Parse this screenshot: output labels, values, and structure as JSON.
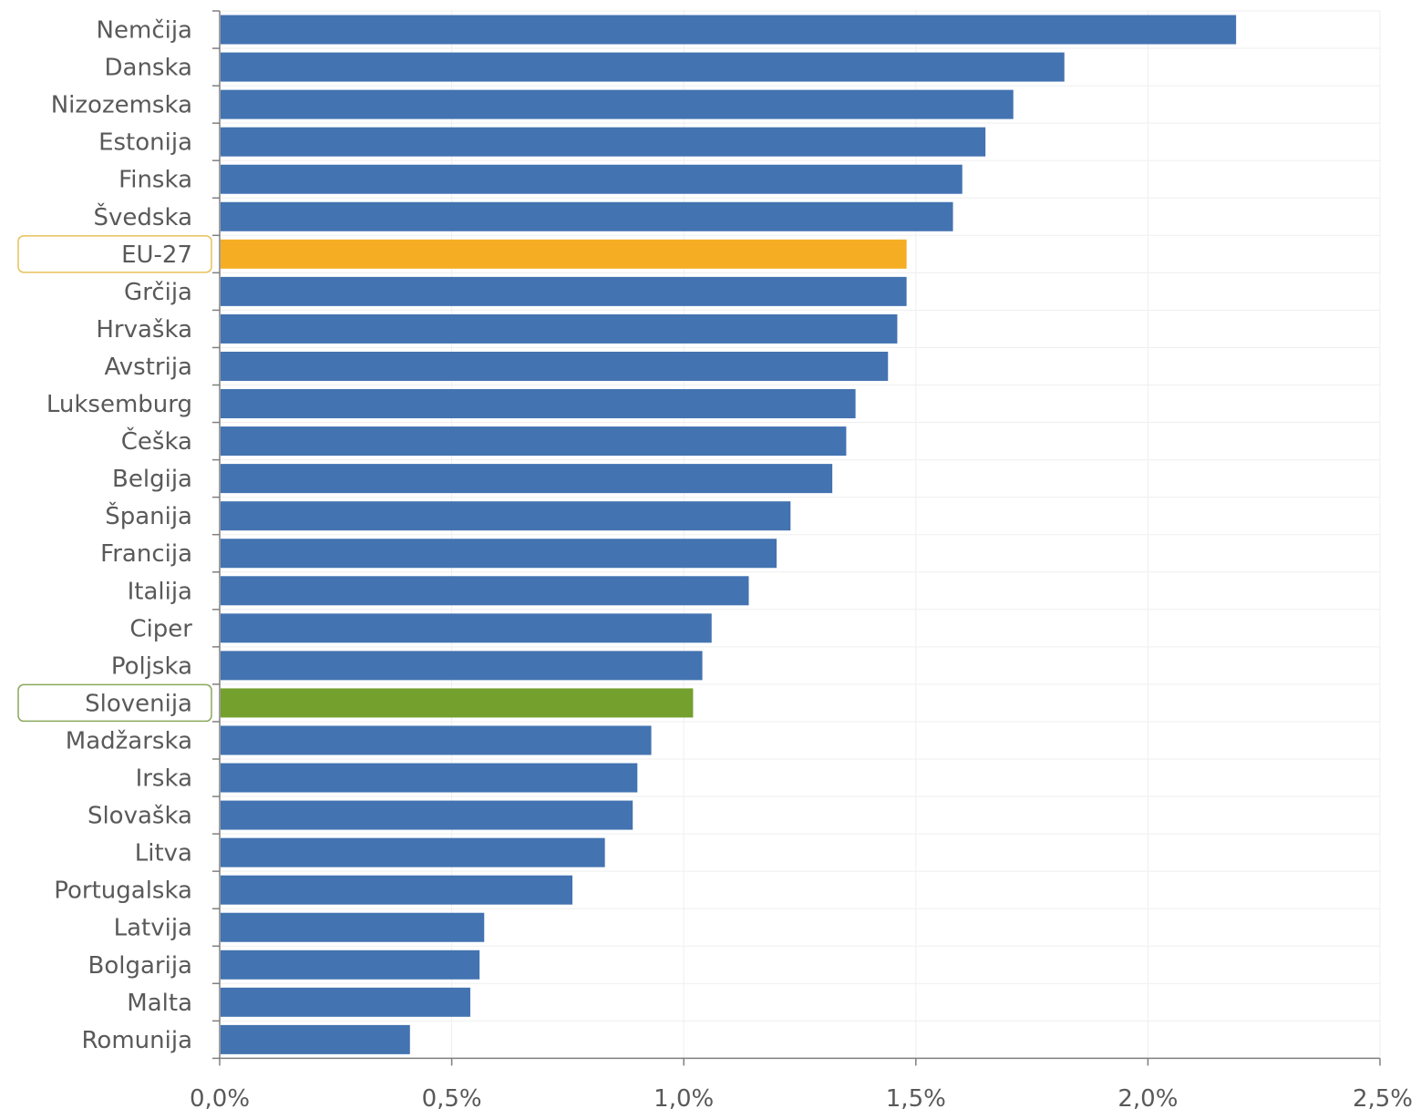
{
  "colors": {
    "bar": "#4373b1",
    "highlight_eu": "#f5ae24",
    "highlight_si": "#74a02e",
    "axis": "#7f7f7f",
    "grid": "#efefef",
    "text": "#595959"
  },
  "chart_data": {
    "type": "bar",
    "orientation": "horizontal",
    "title": "",
    "xlabel": "",
    "ylabel": "",
    "xlim": [
      0,
      2.5
    ],
    "x_ticks": [
      0,
      0.5,
      1.0,
      1.5,
      2.0,
      2.5
    ],
    "x_tick_labels": [
      "0,0%",
      "0,5%",
      "1,0%",
      "1,5%",
      "2,0%",
      "2,5%"
    ],
    "grid": true,
    "legend": "none",
    "categories": [
      "Nemčija",
      "Danska",
      "Nizozemska",
      "Estonija",
      "Finska",
      "Švedska",
      "EU-27",
      "Grčija",
      "Hrvaška",
      "Avstrija",
      "Luksemburg",
      "Češka",
      "Belgija",
      "Španija",
      "Francija",
      "Italija",
      "Ciper",
      "Poljska",
      "Slovenija",
      "Madžarska",
      "Irska",
      "Slovaška",
      "Litva",
      "Portugalska",
      "Latvija",
      "Bolgarija",
      "Malta",
      "Romunija"
    ],
    "values": [
      2.19,
      1.82,
      1.71,
      1.65,
      1.6,
      1.58,
      1.48,
      1.48,
      1.46,
      1.44,
      1.37,
      1.35,
      1.32,
      1.23,
      1.2,
      1.14,
      1.06,
      1.04,
      1.02,
      0.93,
      0.9,
      0.89,
      0.83,
      0.76,
      0.57,
      0.56,
      0.54,
      0.41
    ],
    "highlights": [
      {
        "category": "EU-27",
        "color": "#f5ae24",
        "box_color": "#e8c15a"
      },
      {
        "category": "Slovenija",
        "color": "#74a02e",
        "box_color": "#8aa85a"
      }
    ]
  }
}
